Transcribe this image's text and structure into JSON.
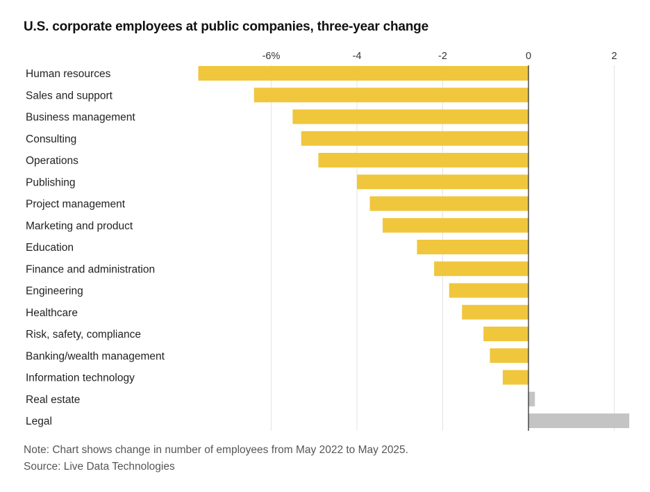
{
  "chart_data": {
    "type": "bar",
    "orientation": "horizontal",
    "title": "U.S. corporate employees at public companies, three-year change",
    "xlim": [
      -7.9,
      2.4
    ],
    "x_ticks": [
      -6,
      -4,
      -2,
      0,
      2
    ],
    "x_tick_labels": [
      "-6%",
      "-4",
      "-2",
      "0",
      "2"
    ],
    "grid": true,
    "categories": [
      "Human resources",
      "Sales and support",
      "Business management",
      "Consulting",
      "Operations",
      "Publishing",
      "Project management",
      "Marketing and product",
      "Education",
      "Finance and administration",
      "Engineering",
      "Healthcare",
      "Risk, safety, compliance",
      "Banking/wealth management",
      "Information technology",
      "Real estate",
      "Legal"
    ],
    "values": [
      -7.7,
      -6.4,
      -5.5,
      -5.3,
      -4.9,
      -4.0,
      -3.7,
      -3.4,
      -2.6,
      -2.2,
      -1.85,
      -1.55,
      -1.05,
      -0.9,
      -0.6,
      0.15,
      2.35
    ],
    "colors": {
      "negative": "#f0c63c",
      "positive": "#c4c4c4",
      "zero_line": "#222222",
      "grid": "#e3e3e3"
    }
  },
  "note": "Note: Chart shows change in number of employees from May 2022 to May 2025.",
  "source": "Source: Live Data Technologies"
}
